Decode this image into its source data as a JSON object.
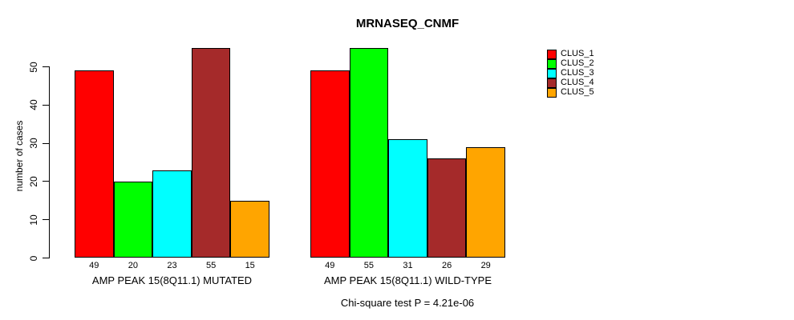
{
  "chart_data": {
    "type": "bar",
    "title": "MRNASEQ_CNMF",
    "ylabel": "number of cases",
    "xlabel": "",
    "ylim": [
      0,
      55
    ],
    "yticks": [
      0,
      10,
      20,
      30,
      40,
      50
    ],
    "grid": false,
    "legend_position": "right",
    "bar_value_labels": true,
    "categories": [
      "AMP PEAK 15(8Q11.1) MUTATED",
      "AMP PEAK 15(8Q11.1) WILD-TYPE"
    ],
    "series": [
      {
        "name": "CLUS_1",
        "color": "#FF0000",
        "values": [
          49,
          49
        ]
      },
      {
        "name": "CLUS_2",
        "color": "#00FF00",
        "values": [
          20,
          55
        ]
      },
      {
        "name": "CLUS_3",
        "color": "#00FFFF",
        "values": [
          23,
          31
        ]
      },
      {
        "name": "CLUS_4",
        "color": "#A52A2A",
        "values": [
          55,
          26
        ]
      },
      {
        "name": "CLUS_5",
        "color": "#FFA500",
        "values": [
          15,
          29
        ]
      }
    ],
    "annotation": "Chi-square test P = 4.21e-06",
    "axis_color": "#000000",
    "background_color": "#FFFFFF"
  }
}
